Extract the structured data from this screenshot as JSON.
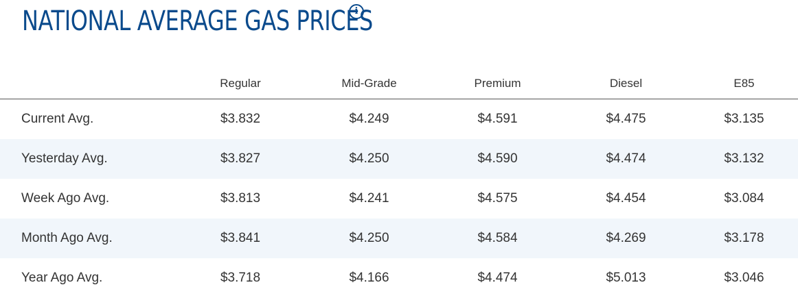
{
  "title": "NATIONAL AVERAGE GAS PRICES",
  "info_icon": "info-icon",
  "colors": {
    "title": "#0a4a8c",
    "stripe": "#f1f6fb",
    "text": "#333333"
  },
  "table": {
    "columns": [
      "",
      "Regular",
      "Mid-Grade",
      "Premium",
      "Diesel",
      "E85"
    ],
    "rows": [
      {
        "label": "Current Avg.",
        "values": [
          "$3.832",
          "$4.249",
          "$4.591",
          "$4.475",
          "$3.135"
        ]
      },
      {
        "label": "Yesterday Avg.",
        "values": [
          "$3.827",
          "$4.250",
          "$4.590",
          "$4.474",
          "$3.132"
        ]
      },
      {
        "label": "Week Ago Avg.",
        "values": [
          "$3.813",
          "$4.241",
          "$4.575",
          "$4.454",
          "$3.084"
        ]
      },
      {
        "label": "Month Ago Avg.",
        "values": [
          "$3.841",
          "$4.250",
          "$4.584",
          "$4.269",
          "$3.178"
        ]
      },
      {
        "label": "Year Ago Avg.",
        "values": [
          "$3.718",
          "$4.166",
          "$4.474",
          "$5.013",
          "$3.046"
        ]
      }
    ]
  }
}
